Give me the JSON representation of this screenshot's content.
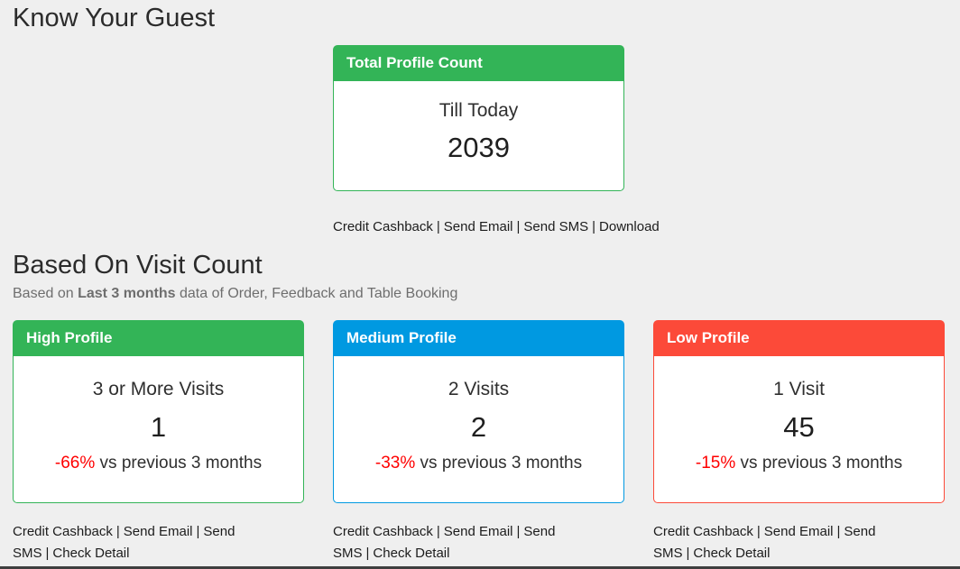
{
  "separator": "|",
  "page": {
    "title": "Know Your Guest",
    "background_color": "#efefef",
    "bottom_bar_color": "#3e3e3e"
  },
  "total_profile": {
    "header": "Total Profile Count",
    "header_color": "#33b457",
    "period_label": "Till Today",
    "count": "2039",
    "links": [
      "Credit Cashback",
      "Send Email",
      "Send SMS",
      "Download"
    ]
  },
  "visit_section": {
    "title": "Based On Visit Count",
    "subtitle_prefix": "Based on ",
    "subtitle_bold": "Last 3 months",
    "subtitle_suffix": " data of Order, Feedback and Table Booking",
    "negative_color": "#ff0000",
    "cards": [
      {
        "header": "High Profile",
        "color": "#33b457",
        "visits_label": "3 or More Visits",
        "count": "1",
        "change": "-66%",
        "change_suffix": " vs previous 3 months",
        "links": [
          "Credit Cashback",
          "Send Email",
          "Send SMS",
          "Check Detail"
        ]
      },
      {
        "header": "Medium Profile",
        "color": "#0099e1",
        "visits_label": "2 Visits",
        "count": "2",
        "change": "-33%",
        "change_suffix": " vs previous 3 months",
        "links": [
          "Credit Cashback",
          "Send Email",
          "Send SMS",
          "Check Detail"
        ]
      },
      {
        "header": "Low Profile",
        "color": "#fc4a39",
        "visits_label": "1 Visit",
        "count": "45",
        "change": "-15%",
        "change_suffix": " vs previous 3 months",
        "links": [
          "Credit Cashback",
          "Send Email",
          "Send SMS",
          "Check Detail"
        ]
      }
    ]
  }
}
